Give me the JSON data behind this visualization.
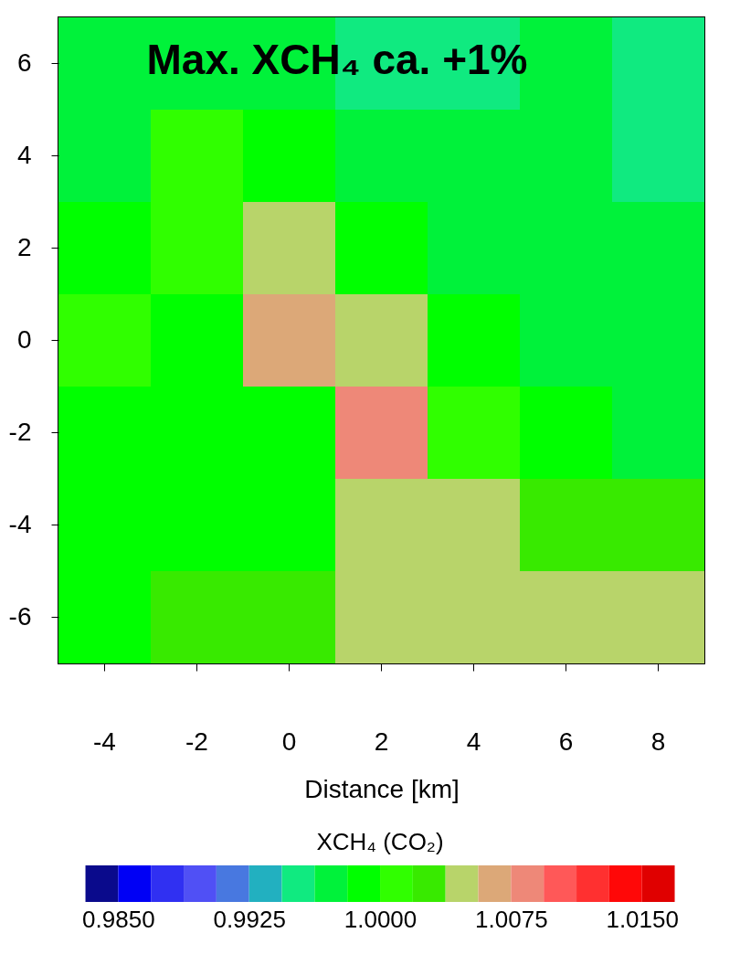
{
  "chart_data": {
    "type": "heatmap",
    "xlabel": "Distance [km]",
    "clabel": "XCH₄ (CO₂)",
    "annotations": [
      "Max. XCH₄ ca. +1%"
    ],
    "categories": [
      "-4",
      "-2",
      "0",
      "2",
      "4",
      "6",
      "8"
    ],
    "y_categories": [
      "6",
      "4",
      "2",
      "0",
      "-2",
      "-4",
      "-6"
    ],
    "cells": [
      [
        0.9972,
        0.9972,
        0.9972,
        0.9953,
        0.9953,
        0.9972,
        0.9953
      ],
      [
        0.9972,
        1.0009,
        0.9991,
        0.9972,
        0.9972,
        0.9972,
        0.9953
      ],
      [
        0.9991,
        1.0009,
        1.0047,
        0.9991,
        0.9972,
        0.9972,
        0.9972
      ],
      [
        1.0009,
        0.9991,
        1.0066,
        1.0047,
        0.9991,
        0.9972,
        0.9972
      ],
      [
        0.9991,
        0.9991,
        0.9991,
        1.0084,
        1.0009,
        0.9991,
        0.9972
      ],
      [
        0.9991,
        0.9991,
        0.9991,
        1.0047,
        1.0047,
        1.0028,
        1.0028
      ],
      [
        0.9991,
        1.0028,
        1.0028,
        1.0047,
        1.0047,
        1.0047,
        1.0047
      ]
    ],
    "clim": [
      0.983125,
      1.016875
    ],
    "cticks": [
      {
        "value": 0.985,
        "label": "0.9850"
      },
      {
        "value": 0.9925,
        "label": "0.9925"
      },
      {
        "value": 1,
        "label": "1.0000"
      },
      {
        "value": 1.0075,
        "label": "1.0075"
      },
      {
        "value": 1.015,
        "label": "1.0150"
      }
    ],
    "colors": [
      "#0a0a8c",
      "#0000f5",
      "#3030f2",
      "#5050f5",
      "#4878e0",
      "#22b0c0",
      "#10ea80",
      "#00f23a",
      "#00ff00",
      "#30ff00",
      "#38ea00",
      "#b8d46a",
      "#dca878",
      "#ee8878",
      "#ff5858",
      "#ff3030",
      "#ff0808",
      "#e00000"
    ],
    "grid": false
  }
}
